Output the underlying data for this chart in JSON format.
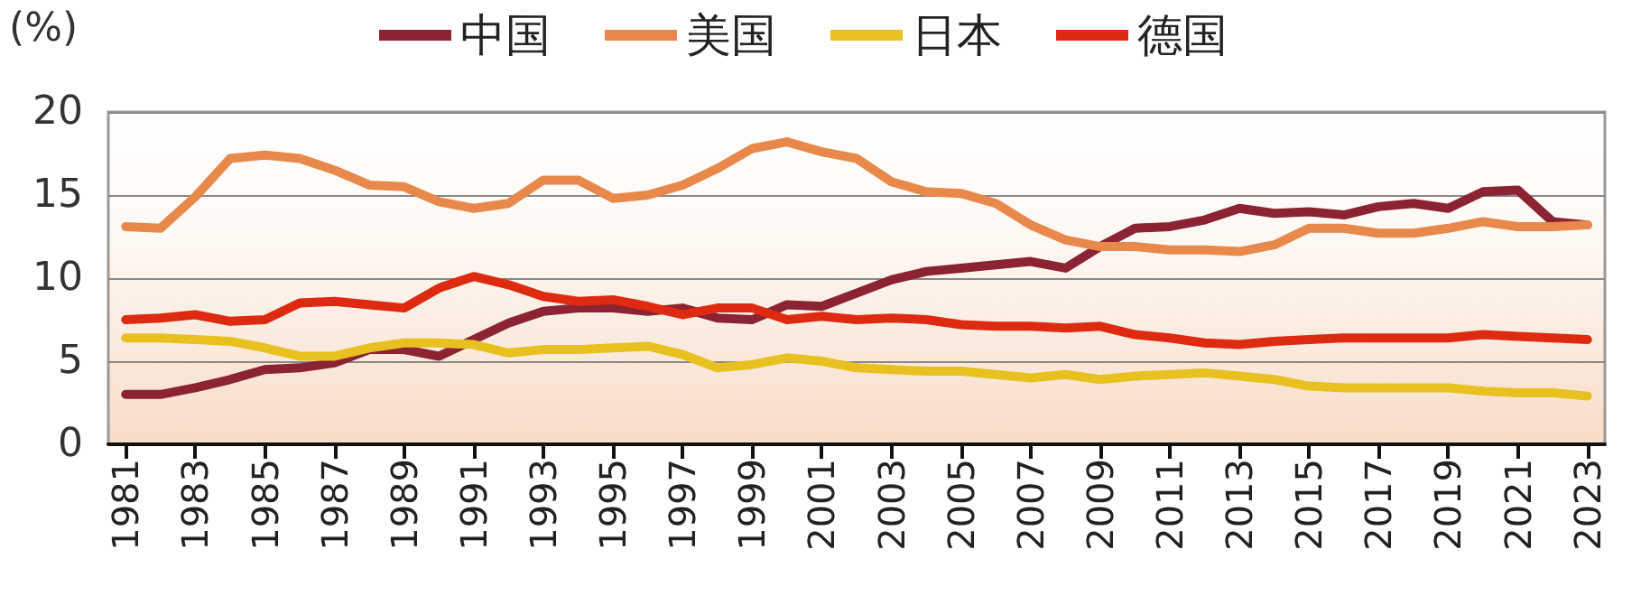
{
  "chart_data": {
    "type": "line",
    "ylabel": "(%)",
    "categories": [
      "1981",
      null,
      "1983",
      null,
      "1985",
      null,
      "1987",
      null,
      "1989",
      null,
      "1991",
      null,
      "1993",
      null,
      "1995",
      null,
      "1997",
      null,
      "1999",
      null,
      "2001",
      null,
      "2003",
      null,
      "2005",
      null,
      "2007",
      null,
      "2009",
      null,
      "2011",
      null,
      "2013",
      null,
      "2015",
      null,
      "2017",
      null,
      "2019",
      null,
      "2021",
      null,
      "2023"
    ],
    "series": [
      {
        "name": "中国",
        "color": "#8b2332",
        "values": [
          3.0,
          3.0,
          3.4,
          3.9,
          4.5,
          4.6,
          4.9,
          5.7,
          5.7,
          5.3,
          6.3,
          7.3,
          8.0,
          8.2,
          8.2,
          8.0,
          8.2,
          7.6,
          7.5,
          8.4,
          8.3,
          9.1,
          9.9,
          10.4,
          10.6,
          10.8,
          11.0,
          10.6,
          11.9,
          13.0,
          13.1,
          13.5,
          14.2,
          13.9,
          14.0,
          13.8,
          14.3,
          14.5,
          14.2,
          15.2,
          15.3,
          13.4,
          13.2
        ]
      },
      {
        "name": "美国",
        "color": "#e8884a",
        "values": [
          13.1,
          13.0,
          14.9,
          17.2,
          17.4,
          17.2,
          16.5,
          15.6,
          15.5,
          14.6,
          14.2,
          14.5,
          15.9,
          15.9,
          14.8,
          15.0,
          15.6,
          16.6,
          17.8,
          18.2,
          17.6,
          17.2,
          15.8,
          15.2,
          15.1,
          14.5,
          13.2,
          12.3,
          11.9,
          11.9,
          11.7,
          11.7,
          11.6,
          12.0,
          13.0,
          13.0,
          12.7,
          12.7,
          13.0,
          13.4,
          13.1,
          13.1,
          13.2
        ]
      },
      {
        "name": "日本",
        "color": "#e8c020",
        "values": [
          6.4,
          6.4,
          6.3,
          6.2,
          5.8,
          5.3,
          5.3,
          5.8,
          6.1,
          6.1,
          6.0,
          5.5,
          5.7,
          5.7,
          5.8,
          5.9,
          5.4,
          4.6,
          4.8,
          5.2,
          5.0,
          4.6,
          4.5,
          4.4,
          4.4,
          4.2,
          4.0,
          4.2,
          3.9,
          4.1,
          4.2,
          4.3,
          4.1,
          3.9,
          3.5,
          3.4,
          3.4,
          3.4,
          3.4,
          3.2,
          3.1,
          3.1,
          2.9
        ]
      },
      {
        "name": "德国",
        "color": "#dd2a10",
        "values": [
          7.5,
          7.6,
          7.8,
          7.4,
          7.5,
          8.5,
          8.6,
          8.4,
          8.2,
          9.4,
          10.1,
          9.6,
          8.9,
          8.6,
          8.7,
          8.3,
          7.8,
          8.2,
          8.2,
          7.5,
          7.7,
          7.5,
          7.6,
          7.5,
          7.2,
          7.1,
          7.1,
          7.0,
          7.1,
          6.6,
          6.4,
          6.1,
          6.0,
          6.2,
          6.3,
          6.4,
          6.4,
          6.4,
          6.4,
          6.6,
          6.5,
          6.4,
          6.3
        ]
      }
    ],
    "ylim": [
      0,
      20
    ],
    "yticks": [
      0,
      5,
      10,
      15,
      20
    ],
    "grid": "y",
    "legend": "top",
    "marker": "none",
    "line_style": "solid"
  }
}
